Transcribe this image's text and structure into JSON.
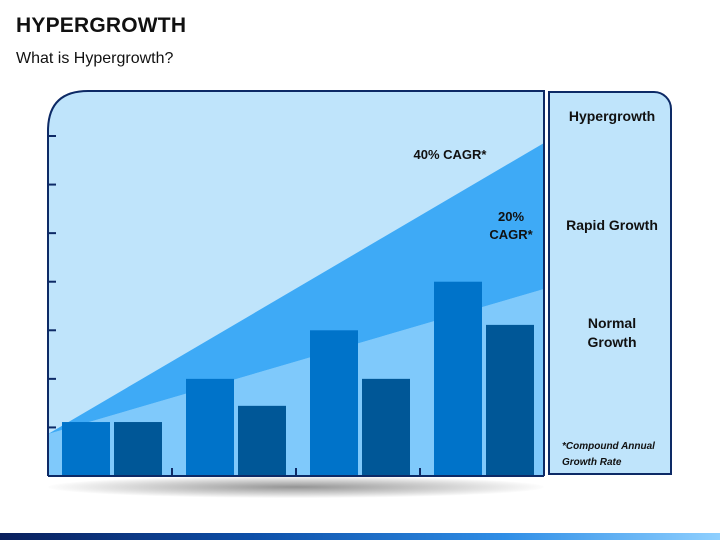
{
  "header": {
    "title": "HYPERGROWTH",
    "subtitle": "What is Hypergrowth?"
  },
  "chart_data": {
    "type": "bar",
    "categories": [
      "",
      "",
      "",
      ""
    ],
    "series": [
      {
        "values": [
          1.0,
          1.8,
          2.7,
          3.6
        ]
      },
      {
        "values": [
          1.0,
          1.3,
          1.8,
          2.8
        ]
      }
    ],
    "ylim": [
      0,
      6.3
    ],
    "grid": false,
    "annotations": [
      "40% CAGR*",
      "20% CAGR*"
    ],
    "bands": [
      {
        "label": "Hypergrowth"
      },
      {
        "label": "Rapid Growth"
      },
      {
        "label": "Normal Growth"
      }
    ]
  },
  "labels": {
    "cagr_40": "40% CAGR*",
    "cagr_20_line1": "20%",
    "cagr_20_line2": "CAGR*"
  },
  "legend": {
    "hypergrowth": "Hypergrowth",
    "rapid_growth": "Rapid Growth",
    "normal_growth_line1": "Normal",
    "normal_growth_line2": "Growth",
    "footnote_line1": "*Compound Annual",
    "footnote_line2": "Growth Rate"
  },
  "colors": {
    "panel_bg": "#bfe4fb",
    "rapid_band": "#7fc9fb",
    "hyper_band": "#3eaaf6",
    "bar_primary": "#0073c9",
    "bar_secondary": "#005797",
    "frame": "#0d2a66"
  }
}
